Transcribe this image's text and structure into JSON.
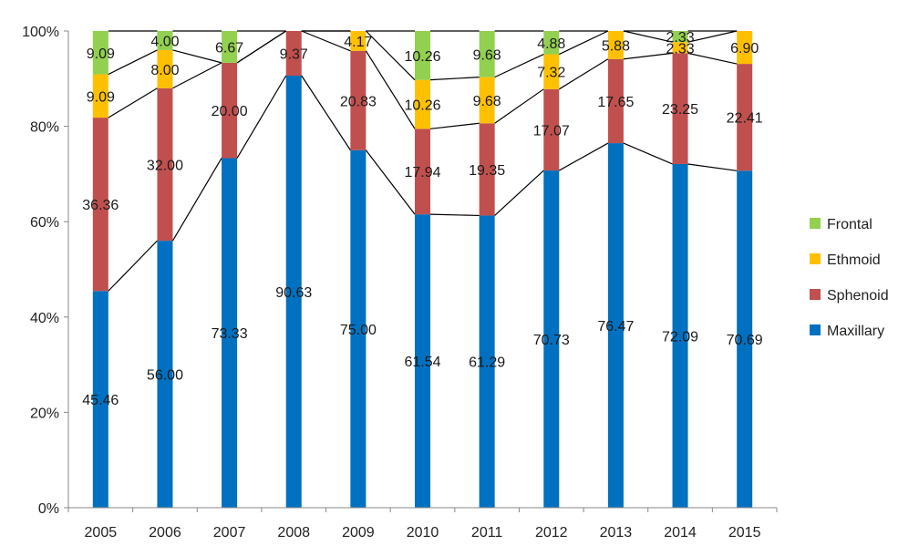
{
  "chart_data": {
    "type": "bar",
    "stacked": true,
    "percent_stacked": true,
    "categories": [
      "2005",
      "2006",
      "2007",
      "2008",
      "2009",
      "2010",
      "2011",
      "2012",
      "2013",
      "2014",
      "2015"
    ],
    "series": [
      {
        "name": "Maxillary",
        "color": "#0070C0",
        "values": [
          45.46,
          56.0,
          73.33,
          90.63,
          75.0,
          61.54,
          61.29,
          70.73,
          76.47,
          72.09,
          70.69
        ],
        "labels": [
          "45.46",
          "56.00",
          "73.33",
          "90.63",
          "75.00",
          "61.54",
          "61.29",
          "70.73",
          "76.47",
          "72.09",
          "70.69"
        ]
      },
      {
        "name": "Sphenoid",
        "color": "#C0504D",
        "values": [
          36.36,
          32.0,
          20.0,
          9.37,
          20.83,
          17.94,
          19.35,
          17.07,
          17.65,
          23.25,
          22.41
        ],
        "labels": [
          "36.36",
          "32.00",
          "20.00",
          "9.37",
          "20.83",
          "17.94",
          "19.35",
          "17.07",
          "17.65",
          "23.25",
          "22.41"
        ]
      },
      {
        "name": "Ethmoid",
        "color": "#FFC000",
        "values": [
          9.09,
          8.0,
          0,
          0,
          4.17,
          10.26,
          9.68,
          7.32,
          5.88,
          2.33,
          6.9
        ],
        "labels": [
          "9.09",
          "8.00",
          "",
          "",
          "4.17",
          "10.26",
          "9.68",
          "7.32",
          "5.88",
          "2.33",
          "6.90"
        ]
      },
      {
        "name": "Frontal",
        "color": "#92D050",
        "values": [
          9.09,
          4.0,
          6.67,
          0,
          0,
          10.26,
          9.68,
          4.88,
          0,
          2.33,
          0
        ],
        "labels": [
          "9.09",
          "4.00",
          "6.67",
          "",
          "",
          "10.26",
          "9.68",
          "4.88",
          "",
          "2.33",
          ""
        ]
      }
    ],
    "ylim": [
      0,
      100
    ],
    "yticks": [
      "0%",
      "20%",
      "40%",
      "60%",
      "80%",
      "100%"
    ],
    "series_lines": true,
    "legend_position": "right",
    "grid": false
  }
}
